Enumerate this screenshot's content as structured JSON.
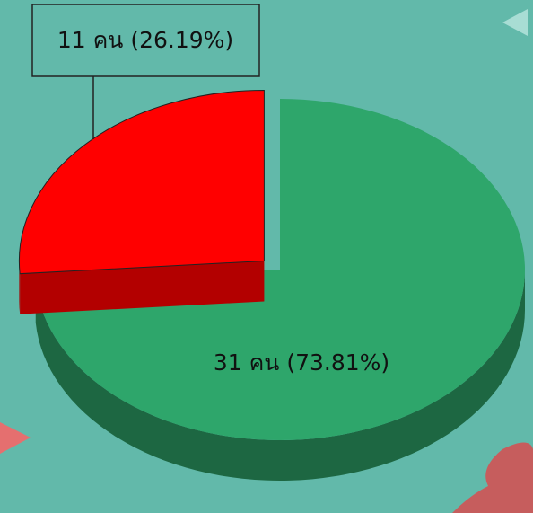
{
  "chart_data": {
    "type": "pie",
    "values": [
      11,
      31
    ],
    "value_labels": [
      "11 คน (26.19%)",
      "31 คน (73.81%)"
    ],
    "colors": [
      "#ff0000",
      "#2ea66b"
    ]
  }
}
